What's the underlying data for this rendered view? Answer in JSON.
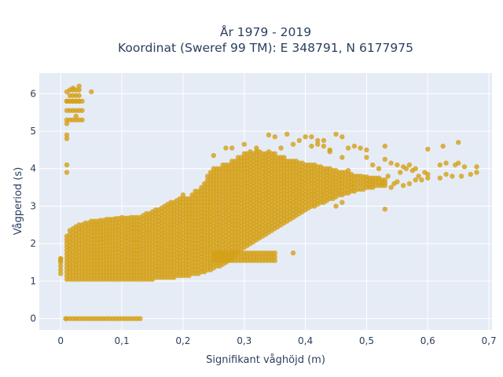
{
  "chart_data": {
    "type": "scatter",
    "title_lines": [
      "År 1979 - 2019",
      "Koordinat (Sweref 99 TM): E 348791, N 6177975"
    ],
    "xlabel": "Signifikant våghöjd (m)",
    "ylabel": "Vågperiod (s)",
    "xlim": [
      -0.035,
      0.705
    ],
    "ylim": [
      -0.3,
      6.55
    ],
    "x_ticks": [
      0,
      0.1,
      0.2,
      0.3,
      0.4,
      0.5,
      0.6,
      0.7
    ],
    "x_tick_labels": [
      "0",
      "0,1",
      "0,2",
      "0,3",
      "0,4",
      "0,5",
      "0,6",
      "0,7"
    ],
    "y_ticks": [
      0,
      1,
      2,
      3,
      4,
      5,
      6
    ],
    "y_tick_labels": [
      "0",
      "1",
      "2",
      "3",
      "4",
      "5",
      "6"
    ],
    "grid": true,
    "legend": "none",
    "colors": {
      "marker": "#d4a017",
      "plot_bg": "#e5ecf6",
      "grid": "#ffffff",
      "text": "#2a3f5f"
    },
    "x_step": 0.005,
    "columns": [
      [
        0.0,
        1.2,
        1.6
      ],
      [
        0.01,
        1.05,
        2.2
      ],
      [
        0.015,
        1.05,
        2.35
      ],
      [
        0.02,
        1.05,
        2.4
      ],
      [
        0.025,
        1.05,
        2.45
      ],
      [
        0.03,
        1.05,
        2.5
      ],
      [
        0.035,
        1.05,
        2.5
      ],
      [
        0.04,
        1.05,
        2.55
      ],
      [
        0.045,
        1.05,
        2.55
      ],
      [
        0.05,
        1.05,
        2.6
      ],
      [
        0.055,
        1.05,
        2.6
      ],
      [
        0.06,
        1.05,
        2.6
      ],
      [
        0.065,
        1.05,
        2.62
      ],
      [
        0.07,
        1.05,
        2.62
      ],
      [
        0.075,
        1.05,
        2.65
      ],
      [
        0.08,
        1.05,
        2.65
      ],
      [
        0.085,
        1.05,
        2.65
      ],
      [
        0.09,
        1.05,
        2.67
      ],
      [
        0.095,
        1.05,
        2.67
      ],
      [
        0.1,
        1.05,
        2.7
      ],
      [
        0.105,
        1.05,
        2.68
      ],
      [
        0.11,
        1.05,
        2.68
      ],
      [
        0.115,
        1.05,
        2.7
      ],
      [
        0.12,
        1.05,
        2.7
      ],
      [
        0.125,
        1.05,
        2.7
      ],
      [
        0.13,
        1.05,
        2.7
      ],
      [
        0.135,
        1.05,
        2.75
      ],
      [
        0.14,
        1.05,
        2.8
      ],
      [
        0.145,
        1.05,
        2.8
      ],
      [
        0.15,
        1.05,
        2.85
      ],
      [
        0.155,
        1.1,
        2.9
      ],
      [
        0.16,
        1.1,
        2.9
      ],
      [
        0.165,
        1.1,
        2.95
      ],
      [
        0.17,
        1.1,
        3.0
      ],
      [
        0.175,
        1.1,
        3.05
      ],
      [
        0.18,
        1.1,
        3.1
      ],
      [
        0.185,
        1.1,
        3.1
      ],
      [
        0.19,
        1.15,
        3.15
      ],
      [
        0.195,
        1.15,
        3.2
      ],
      [
        0.2,
        1.15,
        3.3
      ],
      [
        0.205,
        1.15,
        3.2
      ],
      [
        0.21,
        1.15,
        3.2
      ],
      [
        0.215,
        1.2,
        3.3
      ],
      [
        0.22,
        1.2,
        3.4
      ],
      [
        0.225,
        1.2,
        3.4
      ],
      [
        0.23,
        1.25,
        3.5
      ],
      [
        0.235,
        1.25,
        3.6
      ],
      [
        0.24,
        1.3,
        3.8
      ],
      [
        0.245,
        1.3,
        3.9
      ],
      [
        0.25,
        1.35,
        4.0
      ],
      [
        0.255,
        1.4,
        4.0
      ],
      [
        0.26,
        1.4,
        4.0
      ],
      [
        0.265,
        1.45,
        4.1
      ],
      [
        0.27,
        1.5,
        4.1
      ],
      [
        0.275,
        1.55,
        4.1
      ],
      [
        0.28,
        1.6,
        4.2
      ],
      [
        0.285,
        1.7,
        4.2
      ],
      [
        0.29,
        1.8,
        4.3
      ],
      [
        0.295,
        1.85,
        4.3
      ],
      [
        0.3,
        1.9,
        4.4
      ],
      [
        0.305,
        1.95,
        4.4
      ],
      [
        0.31,
        2.0,
        4.45
      ],
      [
        0.315,
        2.05,
        4.4
      ],
      [
        0.32,
        2.1,
        4.45
      ],
      [
        0.325,
        2.15,
        4.45
      ],
      [
        0.33,
        2.2,
        4.4
      ],
      [
        0.335,
        2.25,
        4.4
      ],
      [
        0.34,
        2.3,
        4.45
      ],
      [
        0.345,
        2.35,
        4.4
      ],
      [
        0.35,
        2.4,
        4.4
      ],
      [
        0.355,
        2.45,
        4.3
      ],
      [
        0.36,
        2.5,
        4.3
      ],
      [
        0.365,
        2.55,
        4.3
      ],
      [
        0.37,
        2.6,
        4.2
      ],
      [
        0.375,
        2.65,
        4.2
      ],
      [
        0.38,
        2.7,
        4.2
      ],
      [
        0.385,
        2.75,
        4.2
      ],
      [
        0.39,
        2.8,
        4.15
      ],
      [
        0.395,
        2.85,
        4.15
      ],
      [
        0.4,
        2.9,
        4.1
      ],
      [
        0.405,
        2.95,
        4.1
      ],
      [
        0.41,
        3.0,
        4.1
      ],
      [
        0.415,
        3.0,
        4.1
      ],
      [
        0.42,
        3.05,
        4.05
      ],
      [
        0.425,
        3.1,
        4.05
      ],
      [
        0.43,
        3.1,
        4.0
      ],
      [
        0.435,
        3.15,
        4.0
      ],
      [
        0.44,
        3.2,
        4.0
      ],
      [
        0.445,
        3.2,
        3.95
      ],
      [
        0.45,
        3.25,
        3.95
      ],
      [
        0.455,
        3.3,
        3.9
      ],
      [
        0.46,
        3.3,
        3.9
      ],
      [
        0.465,
        3.35,
        3.9
      ],
      [
        0.47,
        3.35,
        3.85
      ],
      [
        0.475,
        3.4,
        3.85
      ],
      [
        0.48,
        3.4,
        3.8
      ],
      [
        0.485,
        3.45,
        3.8
      ],
      [
        0.49,
        3.45,
        3.8
      ],
      [
        0.495,
        3.45,
        3.78
      ],
      [
        0.5,
        3.5,
        3.78
      ],
      [
        0.505,
        3.5,
        3.75
      ],
      [
        0.51,
        3.5,
        3.75
      ],
      [
        0.515,
        3.55,
        3.75
      ],
      [
        0.52,
        3.55,
        3.75
      ],
      [
        0.525,
        3.55,
        3.7
      ],
      [
        0.53,
        3.55,
        3.7
      ]
    ],
    "bands": [
      {
        "x_from": 0.01,
        "x_to": 0.13,
        "y": 0.0
      },
      {
        "x_from": 0.01,
        "x_to": 0.035,
        "y": 5.55,
        "spread": 0.25
      },
      {
        "x_from": 0.015,
        "x_to": 0.03,
        "y": 5.95,
        "spread": 0.15
      },
      {
        "x_from": 0.25,
        "x_to": 0.35,
        "y": 1.65,
        "spread": 0.1
      }
    ],
    "points": [
      [
        0.0,
        1.55
      ],
      [
        0.0,
        1.6
      ],
      [
        0.008,
        0.0
      ],
      [
        0.01,
        5.2
      ],
      [
        0.01,
        5.8
      ],
      [
        0.01,
        6.05
      ],
      [
        0.01,
        3.9
      ],
      [
        0.01,
        4.1
      ],
      [
        0.01,
        4.8
      ],
      [
        0.01,
        4.9
      ],
      [
        0.05,
        6.05
      ],
      [
        0.03,
        6.2
      ],
      [
        0.02,
        6.15
      ],
      [
        0.025,
        5.4
      ],
      [
        0.25,
        4.35
      ],
      [
        0.27,
        4.55
      ],
      [
        0.28,
        4.55
      ],
      [
        0.3,
        4.65
      ],
      [
        0.32,
        4.55
      ],
      [
        0.34,
        4.9
      ],
      [
        0.35,
        4.85
      ],
      [
        0.37,
        4.92
      ],
      [
        0.36,
        4.55
      ],
      [
        0.38,
        4.65
      ],
      [
        0.39,
        4.75
      ],
      [
        0.4,
        4.85
      ],
      [
        0.41,
        4.85
      ],
      [
        0.41,
        4.6
      ],
      [
        0.42,
        4.65
      ],
      [
        0.43,
        4.75
      ],
      [
        0.43,
        4.6
      ],
      [
        0.44,
        4.5
      ],
      [
        0.45,
        4.92
      ],
      [
        0.46,
        4.85
      ],
      [
        0.47,
        4.55
      ],
      [
        0.48,
        4.6
      ],
      [
        0.49,
        4.55
      ],
      [
        0.5,
        4.3
      ],
      [
        0.51,
        4.1
      ],
      [
        0.52,
        4.0
      ],
      [
        0.53,
        4.6
      ],
      [
        0.53,
        2.92
      ],
      [
        0.5,
        4.5
      ],
      [
        0.46,
        4.3
      ],
      [
        0.38,
        1.75
      ],
      [
        0.42,
        4.75
      ],
      [
        0.44,
        4.45
      ],
      [
        0.47,
        3.95
      ],
      [
        0.45,
        3.0
      ],
      [
        0.46,
        3.1
      ],
      [
        0.53,
        4.25
      ],
      [
        0.54,
        4.15
      ],
      [
        0.54,
        3.5
      ],
      [
        0.55,
        4.1
      ],
      [
        0.55,
        3.65
      ],
      [
        0.56,
        4.05
      ],
      [
        0.56,
        3.55
      ],
      [
        0.57,
        4.1
      ],
      [
        0.57,
        3.6
      ],
      [
        0.58,
        4.0
      ],
      [
        0.58,
        3.7
      ],
      [
        0.59,
        3.7
      ],
      [
        0.6,
        4.52
      ],
      [
        0.6,
        3.85
      ],
      [
        0.6,
        3.75
      ],
      [
        0.62,
        4.1
      ],
      [
        0.62,
        3.75
      ],
      [
        0.625,
        4.6
      ],
      [
        0.63,
        4.15
      ],
      [
        0.64,
        3.8
      ],
      [
        0.645,
        4.1
      ],
      [
        0.65,
        4.7
      ],
      [
        0.65,
        4.15
      ],
      [
        0.655,
        3.8
      ],
      [
        0.66,
        4.05
      ],
      [
        0.67,
        3.85
      ],
      [
        0.68,
        4.05
      ],
      [
        0.68,
        3.9
      ],
      [
        0.63,
        3.85
      ],
      [
        0.595,
        3.9
      ],
      [
        0.585,
        3.8
      ],
      [
        0.575,
        3.95
      ],
      [
        0.565,
        4.0
      ],
      [
        0.555,
        3.9
      ],
      [
        0.545,
        3.6
      ],
      [
        0.535,
        3.8
      ]
    ]
  }
}
